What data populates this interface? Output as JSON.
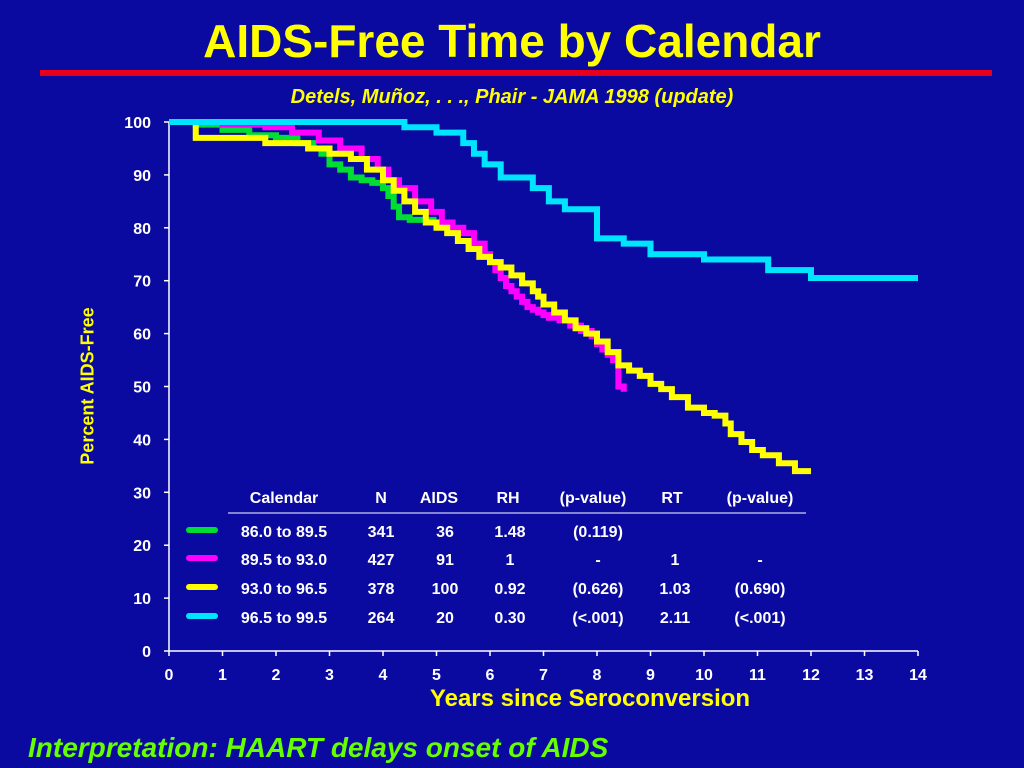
{
  "slide": {
    "title": "AIDS-Free Time by Calendar",
    "subtitle": "Detels, Muñoz, . . ., Phair  -  JAMA 1998  (update)",
    "footer": "Interpretation: HAART delays onset of AIDS",
    "colors": {
      "background": "#0a0aa0",
      "title": "#ffff00",
      "rule": "#e8001a",
      "footer": "#66ff00",
      "text": "#ffffff"
    }
  },
  "chart_data": {
    "type": "line",
    "step": true,
    "xlabel": "Years since Seroconversion",
    "ylabel": "Percent AIDS-Free",
    "xlim": [
      0,
      14
    ],
    "ylim": [
      0,
      100
    ],
    "xticks": [
      0,
      1,
      2,
      3,
      4,
      5,
      6,
      7,
      8,
      9,
      10,
      11,
      12,
      13,
      14
    ],
    "yticks": [
      0,
      10,
      20,
      30,
      40,
      50,
      60,
      70,
      80,
      90,
      100
    ],
    "grid": false,
    "series": [
      {
        "name": "86.0 to 89.5",
        "color": "#00dd33",
        "x": [
          0,
          0.5,
          1.0,
          1.5,
          2.0,
          2.4,
          2.7,
          2.85,
          3.0,
          3.2,
          3.4,
          3.6,
          3.8,
          4.0,
          4.1,
          4.2,
          4.3,
          4.5,
          5.0
        ],
        "y": [
          100,
          99.5,
          98.5,
          97.5,
          97,
          96,
          95,
          94,
          92,
          91,
          89.5,
          89,
          88.5,
          87.5,
          86,
          84,
          82,
          81.5,
          81.5
        ]
      },
      {
        "name": "89.5 to 93.0",
        "color": "#ff00ff",
        "x": [
          0,
          1.0,
          1.8,
          2.3,
          2.8,
          3.2,
          3.6,
          3.9,
          4.1,
          4.3,
          4.6,
          4.9,
          5.1,
          5.3,
          5.5,
          5.7,
          5.9,
          6.0,
          6.1,
          6.2,
          6.3,
          6.4,
          6.5,
          6.6,
          6.7,
          6.8,
          6.9,
          7.0,
          7.1,
          7.3,
          7.5,
          7.7,
          7.9,
          8.0,
          8.1,
          8.2,
          8.3,
          8.4,
          8.5
        ],
        "y": [
          100,
          99.5,
          99,
          98,
          96.5,
          95,
          93,
          91,
          89,
          87.5,
          85,
          83,
          81,
          80,
          79,
          77,
          75,
          73.5,
          72,
          70.5,
          69,
          68,
          67,
          66,
          65,
          64.5,
          64,
          63.5,
          63,
          62.5,
          61.5,
          60.5,
          59.5,
          58,
          57,
          56,
          55,
          50,
          49
        ]
      },
      {
        "name": "93.0 to 96.5",
        "color": "#ffff00",
        "x": [
          0,
          0.5,
          1.8,
          2.6,
          3.0,
          3.4,
          3.7,
          4.0,
          4.2,
          4.4,
          4.6,
          4.8,
          5.0,
          5.2,
          5.4,
          5.6,
          5.8,
          6.0,
          6.2,
          6.4,
          6.6,
          6.8,
          6.9,
          7.0,
          7.2,
          7.4,
          7.6,
          7.8,
          8.0,
          8.2,
          8.4,
          8.6,
          8.8,
          9.0,
          9.2,
          9.4,
          9.7,
          10.0,
          10.2,
          10.4,
          10.5,
          10.7,
          10.9,
          11.1,
          11.4,
          11.7,
          12.0
        ],
        "y": [
          100,
          97,
          96,
          95,
          94,
          93,
          91,
          89,
          87,
          85,
          83,
          81,
          80,
          79,
          77.5,
          76,
          74.5,
          73.5,
          72.5,
          71,
          69.5,
          68,
          67,
          65.5,
          64,
          62.5,
          61,
          60,
          58.5,
          56.5,
          54,
          53,
          52,
          50.5,
          49.5,
          48,
          46,
          45,
          44.5,
          43,
          41,
          39.5,
          38,
          37,
          35.5,
          34,
          34
        ]
      },
      {
        "name": "96.5 to 99.5",
        "color": "#00e5ff",
        "x": [
          0,
          4.4,
          5.0,
          5.5,
          5.7,
          5.9,
          6.2,
          6.4,
          6.8,
          7.1,
          7.4,
          8.0,
          8.5,
          9.0,
          9.5,
          10.0,
          11.2,
          12.0,
          14.0
        ],
        "y": [
          100,
          99,
          98,
          96,
          94,
          92,
          89.5,
          89.5,
          87.5,
          85,
          83.5,
          78,
          77,
          75,
          75,
          74,
          72,
          70.5,
          70.5
        ]
      }
    ],
    "table": {
      "headers": [
        "Calendar",
        "N",
        "AIDS",
        "RH",
        "(p-value)",
        "RT",
        "(p-value)"
      ],
      "rows": [
        [
          "86.0 to 89.5",
          "341",
          "36",
          "1.48",
          "(0.119)",
          "",
          ""
        ],
        [
          "89.5 to 93.0",
          "427",
          "91",
          "1",
          "-",
          "1",
          "-"
        ],
        [
          "93.0 to 96.5",
          "378",
          "100",
          "0.92",
          "(0.626)",
          "1.03",
          "(0.690)"
        ],
        [
          "96.5 to 99.5",
          "264",
          "20",
          "0.30",
          "(<.001)",
          "2.11",
          "(<.001)"
        ]
      ]
    }
  }
}
